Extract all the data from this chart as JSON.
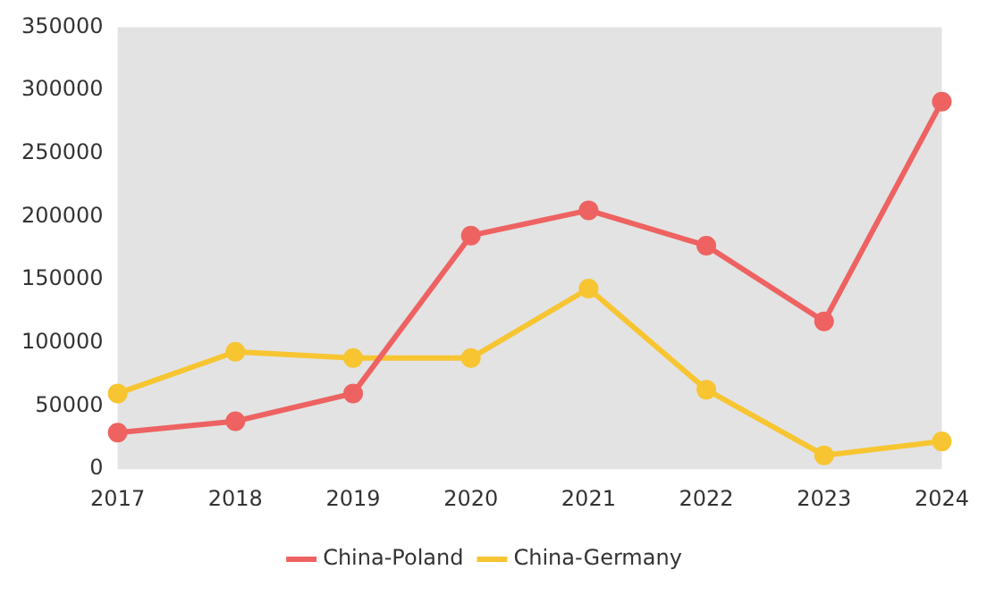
{
  "chart_data": {
    "type": "line",
    "categories": [
      "2017",
      "2018",
      "2019",
      "2020",
      "2021",
      "2022",
      "2023",
      "2024"
    ],
    "series": [
      {
        "name": "China-Poland",
        "color": "#ee6262",
        "values": [
          29000,
          38000,
          60000,
          185000,
          205000,
          177000,
          117000,
          291000
        ]
      },
      {
        "name": "China-Germany",
        "color": "#f7c531",
        "values": [
          60000,
          93000,
          88000,
          88000,
          143000,
          63000,
          11000,
          22000
        ]
      }
    ],
    "ylim": [
      0,
      350000
    ],
    "yticks": [
      0,
      50000,
      100000,
      150000,
      200000,
      250000,
      300000,
      350000
    ],
    "grid": false,
    "legend": "bottom",
    "marker": "circle",
    "line_style": "solid"
  }
}
